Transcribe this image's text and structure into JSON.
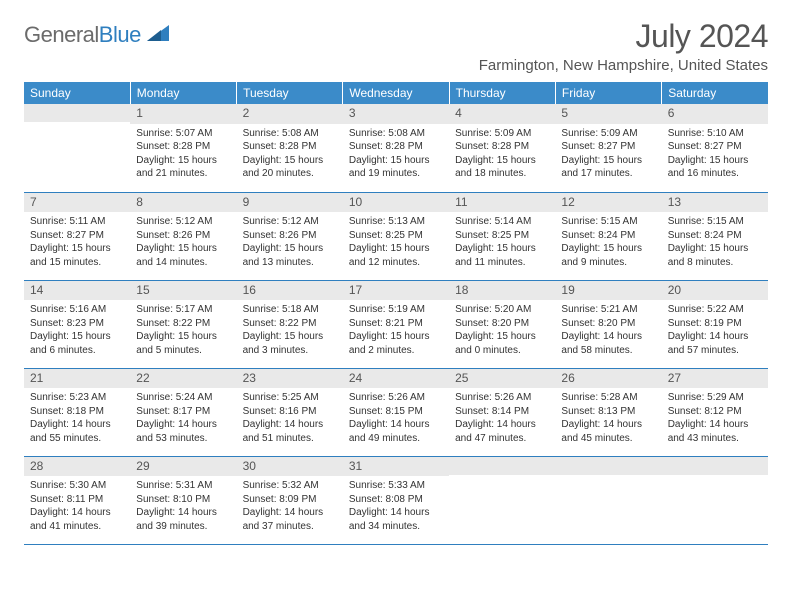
{
  "brand": {
    "part1": "General",
    "part2": "Blue"
  },
  "title": "July 2024",
  "location": "Farmington, New Hampshire, United States",
  "header_bg": "#3b8bc9",
  "daynum_bg": "#e9e9e9",
  "border_color": "#2f7fbf",
  "weekdays": [
    "Sunday",
    "Monday",
    "Tuesday",
    "Wednesday",
    "Thursday",
    "Friday",
    "Saturday"
  ],
  "weeks": [
    [
      null,
      {
        "n": "1",
        "sr": "Sunrise: 5:07 AM",
        "ss": "Sunset: 8:28 PM",
        "dl1": "Daylight: 15 hours",
        "dl2": "and 21 minutes."
      },
      {
        "n": "2",
        "sr": "Sunrise: 5:08 AM",
        "ss": "Sunset: 8:28 PM",
        "dl1": "Daylight: 15 hours",
        "dl2": "and 20 minutes."
      },
      {
        "n": "3",
        "sr": "Sunrise: 5:08 AM",
        "ss": "Sunset: 8:28 PM",
        "dl1": "Daylight: 15 hours",
        "dl2": "and 19 minutes."
      },
      {
        "n": "4",
        "sr": "Sunrise: 5:09 AM",
        "ss": "Sunset: 8:28 PM",
        "dl1": "Daylight: 15 hours",
        "dl2": "and 18 minutes."
      },
      {
        "n": "5",
        "sr": "Sunrise: 5:09 AM",
        "ss": "Sunset: 8:27 PM",
        "dl1": "Daylight: 15 hours",
        "dl2": "and 17 minutes."
      },
      {
        "n": "6",
        "sr": "Sunrise: 5:10 AM",
        "ss": "Sunset: 8:27 PM",
        "dl1": "Daylight: 15 hours",
        "dl2": "and 16 minutes."
      }
    ],
    [
      {
        "n": "7",
        "sr": "Sunrise: 5:11 AM",
        "ss": "Sunset: 8:27 PM",
        "dl1": "Daylight: 15 hours",
        "dl2": "and 15 minutes."
      },
      {
        "n": "8",
        "sr": "Sunrise: 5:12 AM",
        "ss": "Sunset: 8:26 PM",
        "dl1": "Daylight: 15 hours",
        "dl2": "and 14 minutes."
      },
      {
        "n": "9",
        "sr": "Sunrise: 5:12 AM",
        "ss": "Sunset: 8:26 PM",
        "dl1": "Daylight: 15 hours",
        "dl2": "and 13 minutes."
      },
      {
        "n": "10",
        "sr": "Sunrise: 5:13 AM",
        "ss": "Sunset: 8:25 PM",
        "dl1": "Daylight: 15 hours",
        "dl2": "and 12 minutes."
      },
      {
        "n": "11",
        "sr": "Sunrise: 5:14 AM",
        "ss": "Sunset: 8:25 PM",
        "dl1": "Daylight: 15 hours",
        "dl2": "and 11 minutes."
      },
      {
        "n": "12",
        "sr": "Sunrise: 5:15 AM",
        "ss": "Sunset: 8:24 PM",
        "dl1": "Daylight: 15 hours",
        "dl2": "and 9 minutes."
      },
      {
        "n": "13",
        "sr": "Sunrise: 5:15 AM",
        "ss": "Sunset: 8:24 PM",
        "dl1": "Daylight: 15 hours",
        "dl2": "and 8 minutes."
      }
    ],
    [
      {
        "n": "14",
        "sr": "Sunrise: 5:16 AM",
        "ss": "Sunset: 8:23 PM",
        "dl1": "Daylight: 15 hours",
        "dl2": "and 6 minutes."
      },
      {
        "n": "15",
        "sr": "Sunrise: 5:17 AM",
        "ss": "Sunset: 8:22 PM",
        "dl1": "Daylight: 15 hours",
        "dl2": "and 5 minutes."
      },
      {
        "n": "16",
        "sr": "Sunrise: 5:18 AM",
        "ss": "Sunset: 8:22 PM",
        "dl1": "Daylight: 15 hours",
        "dl2": "and 3 minutes."
      },
      {
        "n": "17",
        "sr": "Sunrise: 5:19 AM",
        "ss": "Sunset: 8:21 PM",
        "dl1": "Daylight: 15 hours",
        "dl2": "and 2 minutes."
      },
      {
        "n": "18",
        "sr": "Sunrise: 5:20 AM",
        "ss": "Sunset: 8:20 PM",
        "dl1": "Daylight: 15 hours",
        "dl2": "and 0 minutes."
      },
      {
        "n": "19",
        "sr": "Sunrise: 5:21 AM",
        "ss": "Sunset: 8:20 PM",
        "dl1": "Daylight: 14 hours",
        "dl2": "and 58 minutes."
      },
      {
        "n": "20",
        "sr": "Sunrise: 5:22 AM",
        "ss": "Sunset: 8:19 PM",
        "dl1": "Daylight: 14 hours",
        "dl2": "and 57 minutes."
      }
    ],
    [
      {
        "n": "21",
        "sr": "Sunrise: 5:23 AM",
        "ss": "Sunset: 8:18 PM",
        "dl1": "Daylight: 14 hours",
        "dl2": "and 55 minutes."
      },
      {
        "n": "22",
        "sr": "Sunrise: 5:24 AM",
        "ss": "Sunset: 8:17 PM",
        "dl1": "Daylight: 14 hours",
        "dl2": "and 53 minutes."
      },
      {
        "n": "23",
        "sr": "Sunrise: 5:25 AM",
        "ss": "Sunset: 8:16 PM",
        "dl1": "Daylight: 14 hours",
        "dl2": "and 51 minutes."
      },
      {
        "n": "24",
        "sr": "Sunrise: 5:26 AM",
        "ss": "Sunset: 8:15 PM",
        "dl1": "Daylight: 14 hours",
        "dl2": "and 49 minutes."
      },
      {
        "n": "25",
        "sr": "Sunrise: 5:26 AM",
        "ss": "Sunset: 8:14 PM",
        "dl1": "Daylight: 14 hours",
        "dl2": "and 47 minutes."
      },
      {
        "n": "26",
        "sr": "Sunrise: 5:28 AM",
        "ss": "Sunset: 8:13 PM",
        "dl1": "Daylight: 14 hours",
        "dl2": "and 45 minutes."
      },
      {
        "n": "27",
        "sr": "Sunrise: 5:29 AM",
        "ss": "Sunset: 8:12 PM",
        "dl1": "Daylight: 14 hours",
        "dl2": "and 43 minutes."
      }
    ],
    [
      {
        "n": "28",
        "sr": "Sunrise: 5:30 AM",
        "ss": "Sunset: 8:11 PM",
        "dl1": "Daylight: 14 hours",
        "dl2": "and 41 minutes."
      },
      {
        "n": "29",
        "sr": "Sunrise: 5:31 AM",
        "ss": "Sunset: 8:10 PM",
        "dl1": "Daylight: 14 hours",
        "dl2": "and 39 minutes."
      },
      {
        "n": "30",
        "sr": "Sunrise: 5:32 AM",
        "ss": "Sunset: 8:09 PM",
        "dl1": "Daylight: 14 hours",
        "dl2": "and 37 minutes."
      },
      {
        "n": "31",
        "sr": "Sunrise: 5:33 AM",
        "ss": "Sunset: 8:08 PM",
        "dl1": "Daylight: 14 hours",
        "dl2": "and 34 minutes."
      },
      null,
      null,
      null
    ]
  ]
}
